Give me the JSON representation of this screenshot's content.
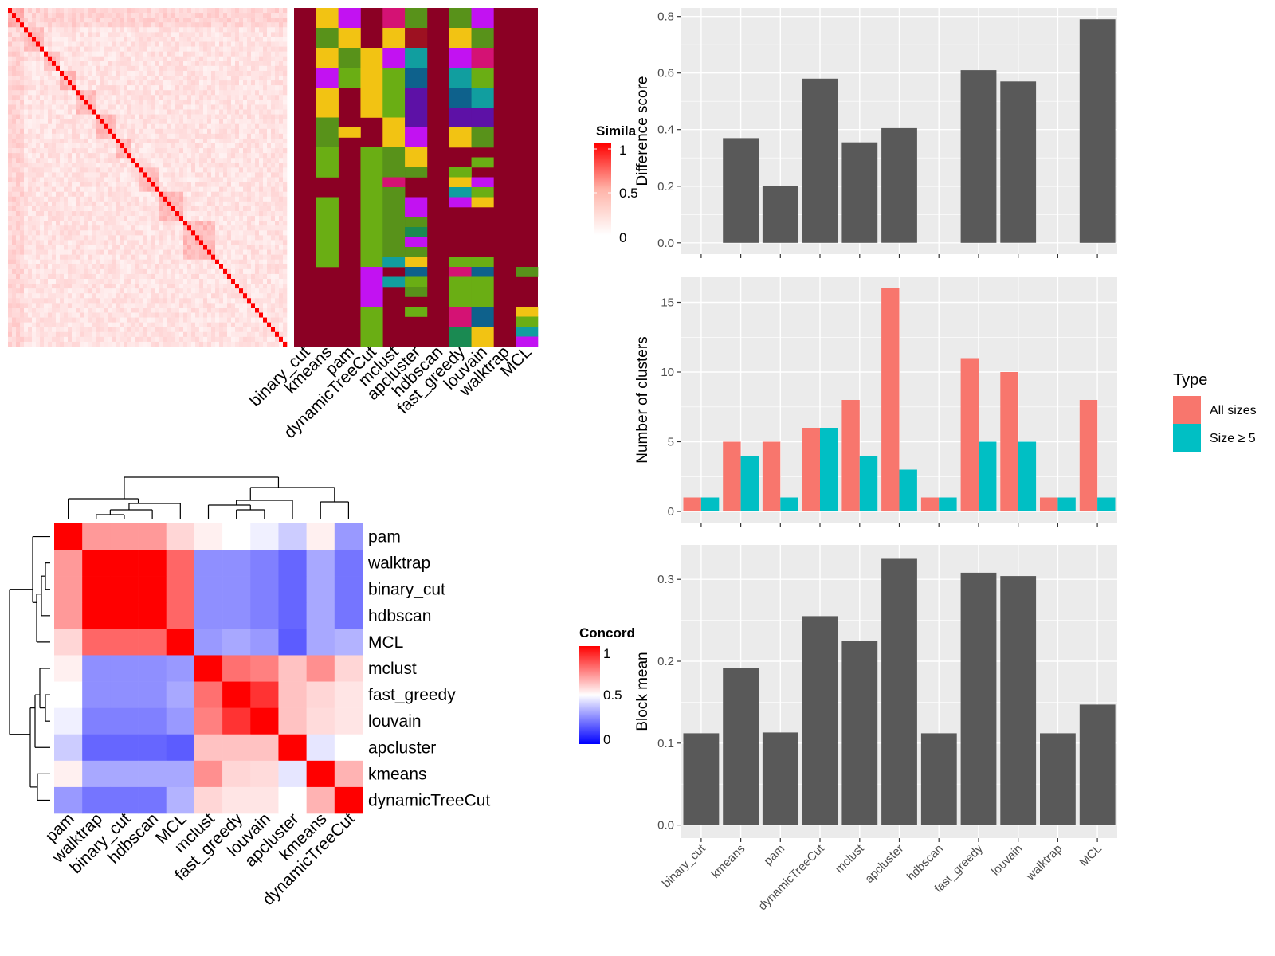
{
  "similarity_legend": {
    "title": "Simila",
    "ticks": [
      "1",
      "0.5",
      "0"
    ]
  },
  "concordance_legend": {
    "title": "Concord",
    "ticks": [
      "1",
      "0.5",
      "0"
    ]
  },
  "type_legend": {
    "title": "Type",
    "entries": [
      {
        "label": "All sizes",
        "color": "#F8766D"
      },
      {
        "label": "Size ≥ 5",
        "color": "#00BFC4"
      }
    ]
  },
  "palette": {
    "bar_gray": "#595959",
    "panel_bg": "#EBEBEB",
    "heat_red": "#FF0000",
    "heat_blue": "#0000FF",
    "cluster_colors": [
      "#8B0024",
      "#F2C313",
      "#C212F2",
      "#58921A",
      "#6AAE14",
      "#D41274",
      "#119E9F",
      "#0E618C",
      "#5D11A6",
      "#1A8A52",
      "#9D1121"
    ]
  },
  "heatmap_top": {
    "columns": [
      "binary_cut",
      "kmeans",
      "pam",
      "dynamicTreeCut",
      "mclust",
      "apcluster",
      "hdbscan",
      "fast_greedy",
      "louvain",
      "walktrap",
      "MCL"
    ]
  },
  "heatmap_bottom": {
    "rows": [
      "pam",
      "walktrap",
      "binary_cut",
      "hdbscan",
      "MCL",
      "mclust",
      "fast_greedy",
      "louvain",
      "apcluster",
      "kmeans",
      "dynamicTreeCut"
    ],
    "values": [
      [
        1.0,
        0.7,
        0.7,
        0.7,
        0.58,
        0.53,
        0.5,
        0.47,
        0.4,
        0.53,
        0.3
      ],
      [
        0.7,
        1.0,
        1.0,
        1.0,
        0.8,
        0.28,
        0.28,
        0.25,
        0.2,
        0.33,
        0.23
      ],
      [
        0.7,
        1.0,
        1.0,
        1.0,
        0.8,
        0.28,
        0.28,
        0.25,
        0.2,
        0.33,
        0.23
      ],
      [
        0.7,
        1.0,
        1.0,
        1.0,
        0.8,
        0.28,
        0.28,
        0.25,
        0.2,
        0.33,
        0.23
      ],
      [
        0.58,
        0.8,
        0.8,
        0.8,
        1.0,
        0.3,
        0.33,
        0.3,
        0.18,
        0.33,
        0.35
      ],
      [
        0.53,
        0.28,
        0.28,
        0.28,
        0.3,
        1.0,
        0.78,
        0.75,
        0.62,
        0.72,
        0.58
      ],
      [
        0.5,
        0.28,
        0.28,
        0.28,
        0.33,
        0.78,
        1.0,
        0.9,
        0.62,
        0.58,
        0.55
      ],
      [
        0.47,
        0.25,
        0.25,
        0.25,
        0.3,
        0.75,
        0.9,
        1.0,
        0.62,
        0.57,
        0.55
      ],
      [
        0.4,
        0.2,
        0.2,
        0.2,
        0.18,
        0.62,
        0.62,
        0.62,
        1.0,
        0.45,
        0.5
      ],
      [
        0.53,
        0.33,
        0.33,
        0.33,
        0.33,
        0.72,
        0.58,
        0.57,
        0.45,
        1.0,
        0.65
      ],
      [
        0.3,
        0.23,
        0.23,
        0.23,
        0.35,
        0.58,
        0.55,
        0.55,
        0.5,
        0.65,
        1.0
      ]
    ]
  },
  "chart_data": [
    {
      "type": "bar",
      "title": "",
      "xlabel": "",
      "ylabel": "Difference score",
      "categories": [
        "binary_cut",
        "kmeans",
        "pam",
        "dynamicTreeCut",
        "mclust",
        "apcluster",
        "hdbscan",
        "fast_greedy",
        "louvain",
        "walktrap",
        "MCL"
      ],
      "values": [
        0,
        0.37,
        0.2,
        0.58,
        0.355,
        0.405,
        0,
        0.61,
        0.57,
        0,
        0.79
      ],
      "ylim": [
        -0.04,
        0.83
      ],
      "yticks": [
        "0.0",
        "0.2",
        "0.4",
        "0.6",
        "0.8"
      ],
      "grid": true
    },
    {
      "type": "bar",
      "title": "",
      "xlabel": "",
      "ylabel": "Number of clusters",
      "categories": [
        "binary_cut",
        "kmeans",
        "pam",
        "dynamicTreeCut",
        "mclust",
        "apcluster",
        "hdbscan",
        "fast_greedy",
        "louvain",
        "walktrap",
        "MCL"
      ],
      "series": [
        {
          "name": "All sizes",
          "values": [
            1,
            5,
            5,
            6,
            8,
            16,
            1,
            11,
            10,
            1,
            8
          ]
        },
        {
          "name": "Size ≥ 5",
          "values": [
            1,
            4,
            1,
            6,
            4,
            3,
            1,
            5,
            5,
            1,
            1
          ]
        }
      ],
      "ylim": [
        -0.8,
        16.8
      ],
      "yticks": [
        "0",
        "5",
        "10",
        "15"
      ],
      "legend": "right",
      "grid": true
    },
    {
      "type": "bar",
      "title": "",
      "xlabel": "",
      "ylabel": "Block mean",
      "categories": [
        "binary_cut",
        "kmeans",
        "pam",
        "dynamicTreeCut",
        "mclust",
        "apcluster",
        "hdbscan",
        "fast_greedy",
        "louvain",
        "walktrap",
        "MCL"
      ],
      "values": [
        0.112,
        0.192,
        0.113,
        0.255,
        0.225,
        0.325,
        0.112,
        0.308,
        0.304,
        0.112,
        0.147
      ],
      "ylim": [
        -0.016,
        0.342
      ],
      "yticks": [
        "0.0",
        "0.1",
        "0.2",
        "0.3"
      ],
      "grid": true
    }
  ]
}
